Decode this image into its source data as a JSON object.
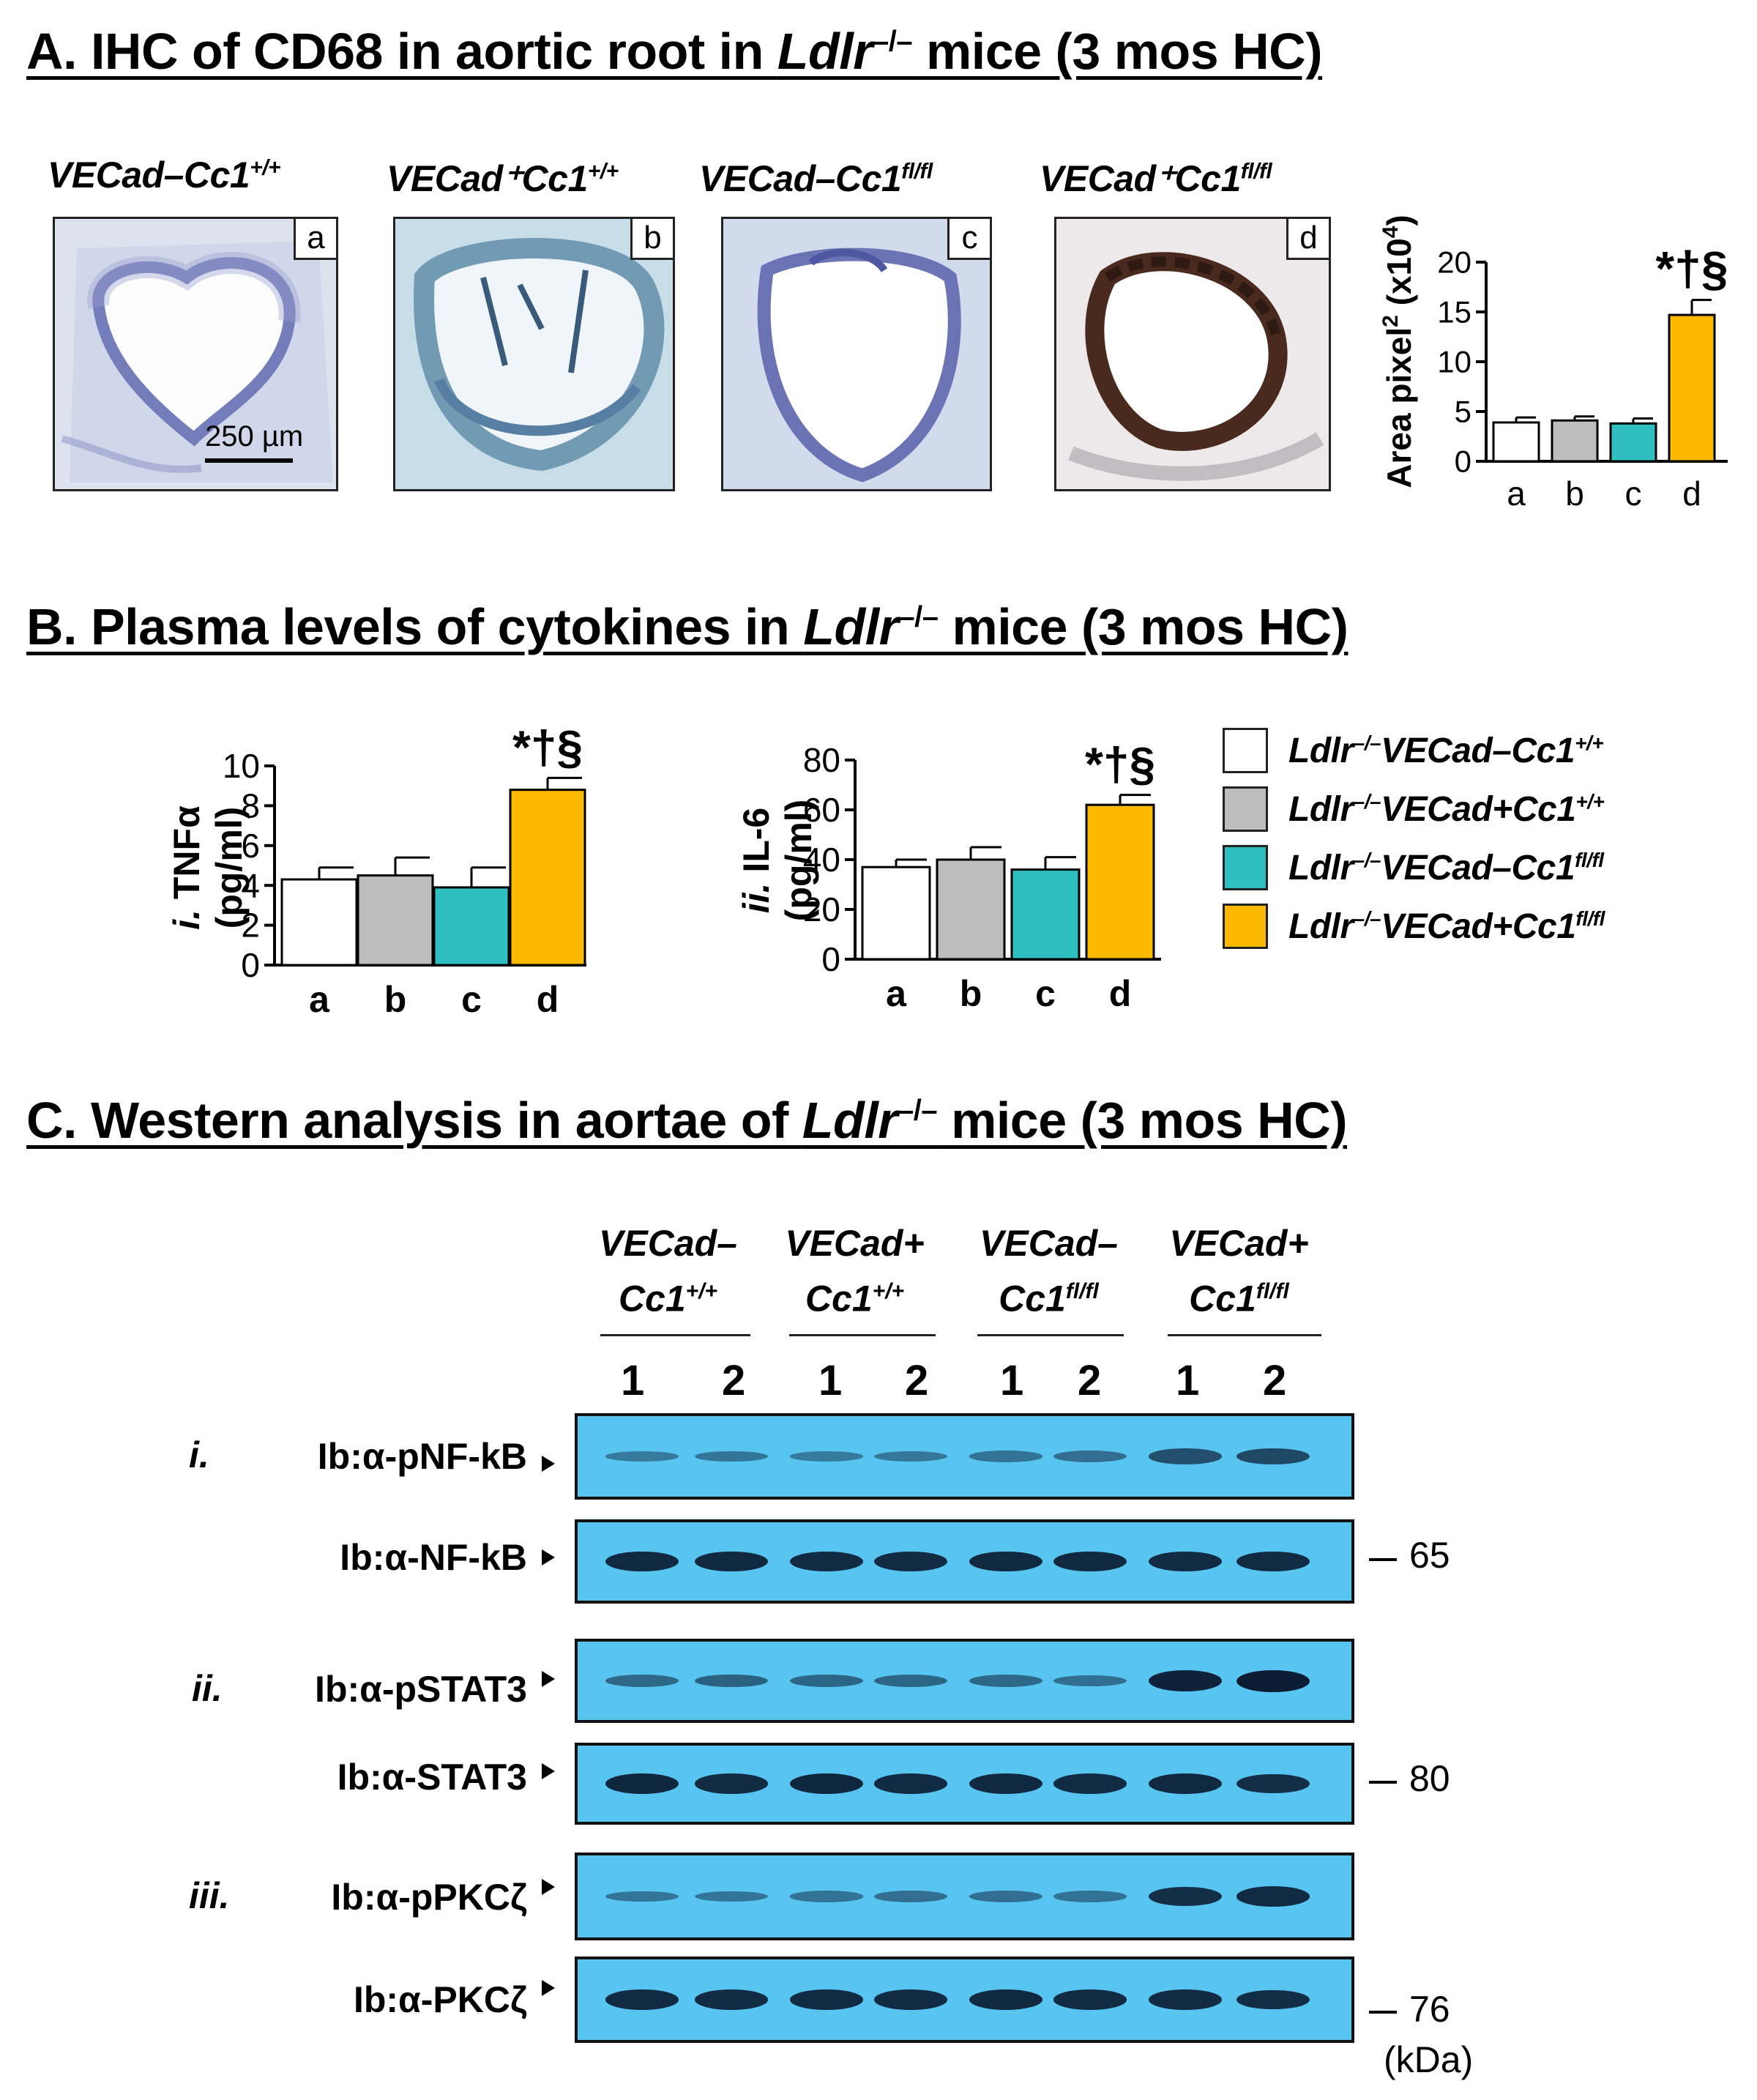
{
  "section_a": {
    "title_pre": "A. IHC of CD68 in aortic root in ",
    "title_gene": "Ldlr",
    "title_sup": "–/–",
    "title_post": " mice (3 mos HC)",
    "panels": [
      {
        "label_main": "VECad–Cc1",
        "label_sup": "+/+",
        "letter": "a"
      },
      {
        "label_main": "VECad⁺Cc1",
        "label_sup": "+/+",
        "letter": "b"
      },
      {
        "label_main": "VECad–Cc1",
        "label_sup": "fl/fl",
        "letter": "c"
      },
      {
        "label_main": "VECad⁺Cc1",
        "label_sup": "fl/fl",
        "letter": "d"
      }
    ],
    "scale_bar": "250 µm"
  },
  "section_b": {
    "title_pre": "B. Plasma levels of cytokines in ",
    "title_gene": "Ldlr",
    "title_sup": "–/–",
    "title_post": " mice (3 mos HC)"
  },
  "section_c": {
    "title_pre": "C. Western analysis in aortae of ",
    "title_gene": "Ldlr",
    "title_sup": "–/–",
    "title_post": " mice (3 mos HC)",
    "groups": [
      {
        "line1": "VECad–",
        "line2": "Cc1",
        "sup": "+/+"
      },
      {
        "line1": "VECad+",
        "line2": "Cc1",
        "sup": "+/+"
      },
      {
        "line1": "VECad–",
        "line2": "Cc1",
        "sup": "fl/fl"
      },
      {
        "line1": "VECad+",
        "line2": "Cc1",
        "sup": "fl/fl"
      }
    ],
    "lanes": [
      "1",
      "2",
      "1",
      "2",
      "1",
      "2",
      "1",
      "2"
    ],
    "blots": [
      {
        "roman": "i.",
        "label": "Ib:α-pNF-kB",
        "mw": ""
      },
      {
        "roman": "",
        "label": "Ib:α-NF-kB",
        "mw": "65"
      },
      {
        "roman": "ii.",
        "label": "Ib:α-pSTAT3",
        "mw": ""
      },
      {
        "roman": "",
        "label": "Ib:α-STAT3",
        "mw": "80"
      },
      {
        "roman": "iii.",
        "label": "Ib:α-pPKCζ",
        "mw": ""
      },
      {
        "roman": "",
        "label": "Ib:α-PKCζ",
        "mw": "76"
      }
    ],
    "band_intensity": [
      [
        0.25,
        0.3,
        0.25,
        0.28,
        0.32,
        0.35,
        0.6,
        0.65
      ],
      [
        0.9,
        0.9,
        0.88,
        0.88,
        0.9,
        0.9,
        0.88,
        0.88
      ],
      [
        0.4,
        0.45,
        0.42,
        0.42,
        0.4,
        0.35,
        0.95,
        1.0
      ],
      [
        0.92,
        0.88,
        0.92,
        0.88,
        0.9,
        0.88,
        0.9,
        0.85
      ],
      [
        0.3,
        0.3,
        0.32,
        0.35,
        0.35,
        0.32,
        0.85,
        0.88
      ],
      [
        0.88,
        0.88,
        0.88,
        0.88,
        0.9,
        0.88,
        0.88,
        0.86
      ]
    ],
    "kda_label": "(kDa)"
  },
  "legend": {
    "items": [
      {
        "main": "Ldlr",
        "sup1": "–/–",
        "mid": "VECad–Cc1",
        "sup2": "+/+",
        "color": "#ffffff"
      },
      {
        "main": "Ldlr",
        "sup1": "–/–",
        "mid": "VECad+Cc1",
        "sup2": "+/+",
        "color": "#bdbdbd"
      },
      {
        "main": "Ldlr",
        "sup1": "–/–",
        "mid": "VECad–Cc1",
        "sup2": "fl/fl",
        "color": "#2fbfc1"
      },
      {
        "main": "Ldlr",
        "sup1": "–/–",
        "mid": "VECad+Cc1",
        "sup2": "fl/fl",
        "color": "#fbb900"
      }
    ]
  },
  "chart_data": [
    {
      "type": "bar",
      "title": "",
      "categories": [
        "a",
        "b",
        "c",
        "d"
      ],
      "values": [
        3.9,
        4.1,
        3.8,
        14.7
      ],
      "errors": [
        0.5,
        0.4,
        0.5,
        1.5
      ],
      "colors": [
        "#ffffff",
        "#bdbdbd",
        "#2fbfc1",
        "#fbb900"
      ],
      "ylabel": "Area pixel² (x10⁴)",
      "ylabel_html": "Area pixel<tspan dy='-18' font-size='30'>2</tspan><tspan dy='18'> (x10</tspan><tspan dy='-18' font-size='30'>4</tspan><tspan dy='18'>)</tspan>",
      "ylim": [
        0,
        20
      ],
      "yticks": [
        0,
        5,
        10,
        15,
        20
      ],
      "significance": "*†§"
    },
    {
      "type": "bar",
      "title": "",
      "categories": [
        "a",
        "b",
        "c",
        "d"
      ],
      "values": [
        4.3,
        4.5,
        3.9,
        8.8
      ],
      "errors": [
        0.6,
        0.9,
        1.0,
        0.6
      ],
      "colors": [
        "#ffffff",
        "#bdbdbd",
        "#2fbfc1",
        "#fbb900"
      ],
      "ylabel_prefix": "i.",
      "ylabel": "TNFα",
      "ylabel2": "(pg/ml)",
      "ylim": [
        0,
        10
      ],
      "yticks": [
        0,
        2,
        4,
        6,
        8,
        10
      ],
      "significance": "*†§"
    },
    {
      "type": "bar",
      "title": "",
      "categories": [
        "a",
        "b",
        "c",
        "d"
      ],
      "values": [
        37,
        40,
        36,
        62
      ],
      "errors": [
        3,
        5,
        5,
        4
      ],
      "colors": [
        "#ffffff",
        "#bdbdbd",
        "#2fbfc1",
        "#fbb900"
      ],
      "ylabel_prefix": "ii.",
      "ylabel": "IL-6",
      "ylabel2": "(pg/ml)",
      "ylim": [
        0,
        80
      ],
      "yticks": [
        0,
        20,
        40,
        60,
        80
      ],
      "significance": "*†§"
    }
  ]
}
